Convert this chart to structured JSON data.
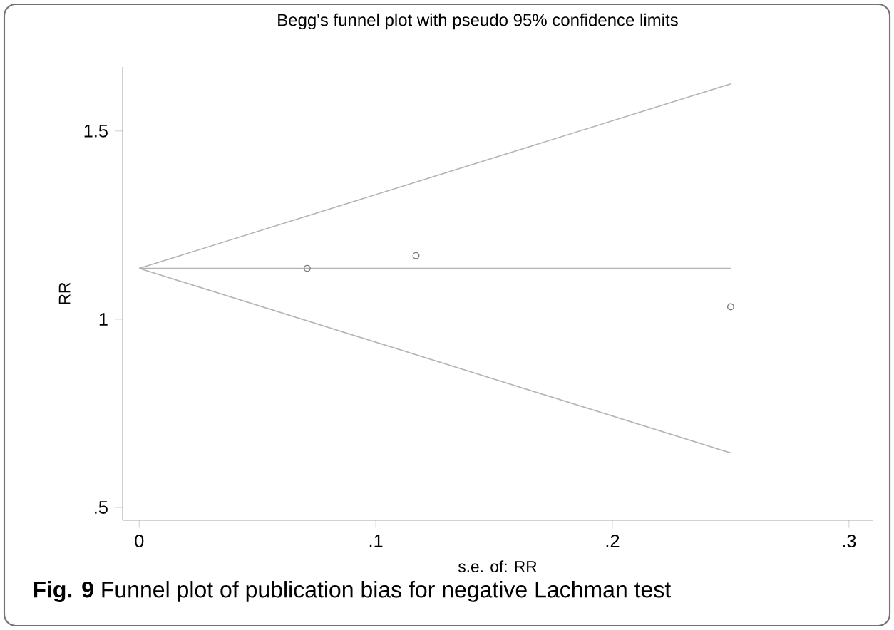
{
  "chart_data": {
    "type": "scatter",
    "title": "Begg's funnel plot with pseudo 95% confidence limits",
    "xlabel": "s.e. of: RR",
    "ylabel": "RR",
    "annotations": [
      "**Fig. 9** Funnel plot of publication bias for negative Lachman test"
    ],
    "xlim": [
      -0.007,
      0.31
    ],
    "ylim": [
      0.466,
      1.67
    ],
    "xticks": [
      0,
      {
        "value": 0.1,
        "label": ".1"
      },
      {
        "value": 0.2,
        "label": ".2"
      },
      {
        "value": 0.3,
        "label": ".3"
      }
    ],
    "yticks": [
      {
        "value": 0.5,
        "label": ".5"
      },
      1,
      1.5
    ],
    "marker": "circle",
    "series": [
      {
        "type": "line",
        "marker": "none",
        "color": "#b4b4b4",
        "x": [
          0,
          0.25
        ],
        "values": [
          1.135,
          1.135
        ]
      },
      {
        "type": "line",
        "marker": "none",
        "color": "#b4b4b4",
        "x": [
          0,
          0.25
        ],
        "values": [
          1.135,
          1.625
        ]
      },
      {
        "type": "line",
        "marker": "none",
        "color": "#b4b4b4",
        "x": [
          0,
          0.25
        ],
        "values": [
          1.135,
          0.645
        ]
      },
      {
        "color": "#7a7a7a",
        "x": [
          0.071,
          0.117,
          0.25
        ],
        "values": [
          1.135,
          1.169,
          1.033
        ]
      }
    ]
  }
}
